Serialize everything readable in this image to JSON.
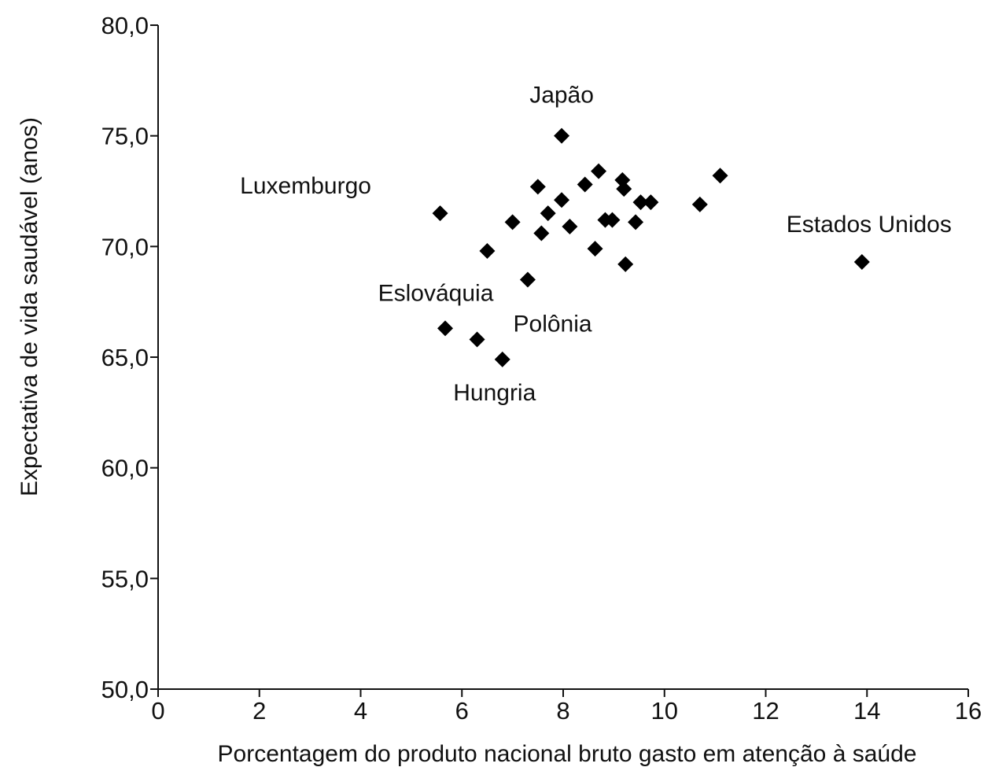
{
  "chart_data": {
    "type": "scatter",
    "title": "",
    "xlabel": "Porcentagem do produto nacional bruto gasto em atenção à saúde",
    "ylabel": "Expectativa de vida saudável (anos)",
    "xlim": [
      0,
      16
    ],
    "ylim": [
      50,
      80
    ],
    "x_ticks": [
      "0",
      "2",
      "4",
      "6",
      "8",
      "10",
      "12",
      "14",
      "16"
    ],
    "y_ticks": [
      "50,0",
      "55,0",
      "60,0",
      "65,0",
      "70,0",
      "75,0",
      "80,0"
    ],
    "grid": false,
    "marker": "diamond",
    "points": [
      {
        "x": 7.97,
        "y": 75.0,
        "label": "Japão"
      },
      {
        "x": 5.57,
        "y": 71.5,
        "label": "Luxemburgo"
      },
      {
        "x": 13.9,
        "y": 69.3,
        "label": "Estados Unidos"
      },
      {
        "x": 5.67,
        "y": 66.3,
        "label": "Eslováquia"
      },
      {
        "x": 6.3,
        "y": 65.8,
        "label": "Polônia"
      },
      {
        "x": 6.8,
        "y": 64.9,
        "label": "Hungria"
      },
      {
        "x": 6.5,
        "y": 69.8,
        "label": ""
      },
      {
        "x": 7.0,
        "y": 71.1,
        "label": ""
      },
      {
        "x": 7.3,
        "y": 68.5,
        "label": ""
      },
      {
        "x": 7.5,
        "y": 72.7,
        "label": ""
      },
      {
        "x": 7.57,
        "y": 70.6,
        "label": ""
      },
      {
        "x": 7.7,
        "y": 71.5,
        "label": ""
      },
      {
        "x": 7.97,
        "y": 72.1,
        "label": ""
      },
      {
        "x": 8.13,
        "y": 70.9,
        "label": ""
      },
      {
        "x": 8.43,
        "y": 72.8,
        "label": ""
      },
      {
        "x": 8.63,
        "y": 69.9,
        "label": ""
      },
      {
        "x": 8.7,
        "y": 73.4,
        "label": ""
      },
      {
        "x": 8.83,
        "y": 71.2,
        "label": ""
      },
      {
        "x": 8.97,
        "y": 71.2,
        "label": ""
      },
      {
        "x": 9.17,
        "y": 73.0,
        "label": ""
      },
      {
        "x": 9.2,
        "y": 72.6,
        "label": ""
      },
      {
        "x": 9.23,
        "y": 69.2,
        "label": ""
      },
      {
        "x": 9.43,
        "y": 71.1,
        "label": ""
      },
      {
        "x": 9.53,
        "y": 72.0,
        "label": ""
      },
      {
        "x": 9.73,
        "y": 72.0,
        "label": ""
      },
      {
        "x": 10.7,
        "y": 71.9,
        "label": ""
      },
      {
        "x": 11.1,
        "y": 73.2,
        "label": ""
      }
    ]
  }
}
